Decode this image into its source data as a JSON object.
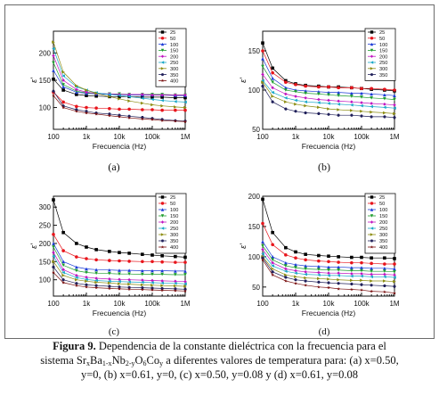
{
  "chart_data": [
    {
      "type": "scatter",
      "panel_label": "(a)",
      "xlabel": "Frecuencia (Hz)",
      "ylabel": "ε'",
      "xscale": "log",
      "xlim": [
        100,
        1000000
      ],
      "ylim": [
        60,
        240
      ],
      "x_ticks": [
        "100",
        "1k",
        "10k",
        "100k",
        "1M"
      ],
      "y_ticks": [
        100,
        150,
        200
      ],
      "legend_position": "top-right",
      "x": [
        100,
        200,
        500,
        1000,
        2000,
        5000,
        10000,
        20000,
        50000,
        100000,
        200000,
        500000,
        1000000
      ],
      "series": [
        {
          "name": "25",
          "color": "#000000",
          "marker": "square",
          "values": [
            152,
            132,
            124,
            122,
            121,
            120,
            120,
            120,
            119,
            119,
            119,
            118,
            118
          ]
        },
        {
          "name": "50",
          "color": "#e8141b",
          "marker": "circle",
          "values": [
            128,
            110,
            102,
            100,
            99,
            98,
            97,
            97,
            96,
            96,
            95,
            95,
            95
          ]
        },
        {
          "name": "100",
          "color": "#1b3bd6",
          "marker": "triangle",
          "values": [
            168,
            138,
            128,
            126,
            125,
            124,
            124,
            123,
            123,
            123,
            123,
            122,
            122
          ]
        },
        {
          "name": "150",
          "color": "#1e9e2e",
          "marker": "tri-down",
          "values": [
            182,
            142,
            130,
            127,
            126,
            125,
            125,
            124,
            124,
            124,
            124,
            123,
            123
          ]
        },
        {
          "name": "200",
          "color": "#c014c0",
          "marker": "diamond",
          "values": [
            195,
            150,
            133,
            128,
            126,
            125,
            124,
            124,
            124,
            123,
            123,
            123,
            123
          ]
        },
        {
          "name": "250",
          "color": "#1aa8c8",
          "marker": "tri-left",
          "values": [
            208,
            158,
            138,
            132,
            127,
            124,
            122,
            120,
            117,
            115,
            113,
            111,
            110
          ]
        },
        {
          "name": "300",
          "color": "#8c8c10",
          "marker": "tri-right",
          "values": [
            220,
            165,
            140,
            132,
            126,
            120,
            116,
            112,
            108,
            105,
            103,
            101,
            100
          ]
        },
        {
          "name": "350",
          "color": "#20205a",
          "marker": "hexagon",
          "values": [
            130,
            103,
            96,
            93,
            90,
            88,
            86,
            84,
            82,
            80,
            78,
            76,
            75
          ]
        },
        {
          "name": "400",
          "color": "#7a1010",
          "marker": "star",
          "values": [
            122,
            100,
            93,
            90,
            88,
            85,
            83,
            81,
            79,
            78,
            76,
            75,
            74
          ]
        }
      ]
    },
    {
      "type": "scatter",
      "panel_label": "(b)",
      "xlabel": "Frecuencia (Hz)",
      "ylabel": "ε'",
      "xscale": "log",
      "xlim": [
        100,
        1000000
      ],
      "ylim": [
        50,
        175
      ],
      "x_ticks": [
        "100",
        "1k",
        "10k",
        "100k",
        "1M"
      ],
      "y_ticks": [
        50,
        100,
        150
      ],
      "legend_position": "top-right",
      "x": [
        100,
        200,
        500,
        1000,
        2000,
        5000,
        10000,
        20000,
        50000,
        100000,
        200000,
        500000,
        1000000
      ],
      "series": [
        {
          "name": "25",
          "color": "#000000",
          "marker": "square",
          "values": [
            160,
            128,
            112,
            108,
            106,
            105,
            104,
            104,
            103,
            102,
            101,
            100,
            99
          ]
        },
        {
          "name": "50",
          "color": "#e8141b",
          "marker": "circle",
          "values": [
            150,
            122,
            110,
            107,
            105,
            104,
            104,
            103,
            103,
            102,
            102,
            101,
            100
          ]
        },
        {
          "name": "100",
          "color": "#1b3bd6",
          "marker": "triangle",
          "values": [
            140,
            115,
            103,
            100,
            99,
            98,
            97,
            97,
            96,
            96,
            95,
            94,
            93
          ]
        },
        {
          "name": "150",
          "color": "#1e9e2e",
          "marker": "tri-down",
          "values": [
            130,
            110,
            100,
            98,
            96,
            95,
            94,
            93,
            92,
            91,
            90,
            89,
            88
          ]
        },
        {
          "name": "200",
          "color": "#c014c0",
          "marker": "diamond",
          "values": [
            120,
            103,
            95,
            92,
            90,
            88,
            87,
            86,
            85,
            84,
            83,
            82,
            81
          ]
        },
        {
          "name": "250",
          "color": "#1aa8c8",
          "marker": "tri-left",
          "values": [
            112,
            97,
            90,
            87,
            85,
            84,
            83,
            82,
            81,
            80,
            79,
            78,
            77
          ]
        },
        {
          "name": "300",
          "color": "#8c8c10",
          "marker": "tri-right",
          "values": [
            110,
            92,
            85,
            82,
            80,
            78,
            76,
            75,
            74,
            73,
            72,
            71,
            70
          ]
        },
        {
          "name": "350",
          "color": "#20205a",
          "marker": "hexagon",
          "values": [
            105,
            85,
            76,
            73,
            71,
            70,
            69,
            68,
            68,
            67,
            66,
            66,
            65
          ]
        }
      ]
    },
    {
      "type": "scatter",
      "panel_label": "(c)",
      "xlabel": "Frecuencia (Hz)",
      "ylabel": "ε'",
      "xscale": "log",
      "xlim": [
        100,
        1000000
      ],
      "ylim": [
        55,
        330
      ],
      "x_ticks": [
        "100",
        "1k",
        "10k",
        "100k",
        "1M"
      ],
      "y_ticks": [
        100,
        150,
        200,
        250,
        300
      ],
      "legend_position": "top-right",
      "x": [
        100,
        200,
        500,
        1000,
        2000,
        5000,
        10000,
        20000,
        50000,
        100000,
        200000,
        500000,
        1000000
      ],
      "series": [
        {
          "name": "25",
          "color": "#000000",
          "marker": "square",
          "values": [
            320,
            230,
            200,
            190,
            183,
            178,
            175,
            173,
            170,
            168,
            166,
            164,
            162
          ]
        },
        {
          "name": "50",
          "color": "#e8141b",
          "marker": "circle",
          "values": [
            225,
            180,
            163,
            158,
            155,
            153,
            152,
            151,
            150,
            150,
            149,
            148,
            148
          ]
        },
        {
          "name": "100",
          "color": "#1b3bd6",
          "marker": "triangle",
          "values": [
            200,
            150,
            135,
            130,
            128,
            127,
            126,
            126,
            125,
            125,
            125,
            124,
            124
          ]
        },
        {
          "name": "150",
          "color": "#1e9e2e",
          "marker": "tri-down",
          "values": [
            190,
            140,
            125,
            120,
            118,
            117,
            116,
            116,
            115,
            115,
            115,
            114,
            114
          ]
        },
        {
          "name": "200",
          "color": "#c014c0",
          "marker": "diamond",
          "values": [
            175,
            128,
            112,
            107,
            104,
            102,
            101,
            100,
            99,
            98,
            97,
            96,
            95
          ]
        },
        {
          "name": "250",
          "color": "#1aa8c8",
          "marker": "tri-left",
          "values": [
            165,
            120,
            106,
            101,
            98,
            96,
            95,
            94,
            93,
            92,
            91,
            90,
            89
          ]
        },
        {
          "name": "300",
          "color": "#8c8c10",
          "marker": "tri-right",
          "values": [
            150,
            112,
            100,
            96,
            93,
            91,
            89,
            88,
            86,
            85,
            84,
            83,
            82
          ]
        },
        {
          "name": "350",
          "color": "#20205a",
          "marker": "hexagon",
          "values": [
            135,
            100,
            90,
            86,
            84,
            82,
            80,
            79,
            78,
            77,
            76,
            75,
            74
          ]
        },
        {
          "name": "400",
          "color": "#7a1010",
          "marker": "star",
          "values": [
            120,
            92,
            84,
            80,
            78,
            76,
            75,
            74,
            73,
            72,
            71,
            70,
            69
          ]
        }
      ]
    },
    {
      "type": "scatter",
      "panel_label": "(d)",
      "xlabel": "Frecuencia (Hz)",
      "ylabel": "ε'",
      "xscale": "log",
      "xlim": [
        100,
        1000000
      ],
      "ylim": [
        35,
        200
      ],
      "x_ticks": [
        "100",
        "1k",
        "10k",
        "100k",
        "1M"
      ],
      "y_ticks": [
        50,
        100,
        150,
        200
      ],
      "legend_position": "top-right",
      "x": [
        100,
        200,
        500,
        1000,
        2000,
        5000,
        10000,
        20000,
        50000,
        100000,
        200000,
        500000,
        1000000
      ],
      "series": [
        {
          "name": "25",
          "color": "#000000",
          "marker": "square",
          "values": [
            195,
            140,
            115,
            108,
            104,
            102,
            101,
            100,
            99,
            99,
            98,
            98,
            97
          ]
        },
        {
          "name": "50",
          "color": "#e8141b",
          "marker": "circle",
          "values": [
            155,
            120,
            103,
            98,
            95,
            93,
            92,
            91,
            90,
            90,
            89,
            88,
            88
          ]
        },
        {
          "name": "100",
          "color": "#1b3bd6",
          "marker": "triangle",
          "values": [
            125,
            100,
            90,
            87,
            85,
            84,
            83,
            83,
            82,
            82,
            81,
            81,
            80
          ]
        },
        {
          "name": "150",
          "color": "#1e9e2e",
          "marker": "tri-down",
          "values": [
            118,
            95,
            85,
            82,
            80,
            79,
            78,
            78,
            77,
            77,
            76,
            76,
            75
          ]
        },
        {
          "name": "200",
          "color": "#c014c0",
          "marker": "diamond",
          "values": [
            112,
            90,
            80,
            77,
            75,
            74,
            73,
            73,
            72,
            72,
            71,
            71,
            70
          ]
        },
        {
          "name": "250",
          "color": "#1aa8c8",
          "marker": "tri-left",
          "values": [
            105,
            85,
            76,
            73,
            71,
            70,
            69,
            69,
            68,
            68,
            67,
            67,
            66
          ]
        },
        {
          "name": "300",
          "color": "#8c8c10",
          "marker": "tri-right",
          "values": [
            100,
            80,
            70,
            67,
            65,
            64,
            63,
            62,
            61,
            61,
            60,
            60,
            59
          ]
        },
        {
          "name": "350",
          "color": "#20205a",
          "marker": "hexagon",
          "values": [
            98,
            75,
            66,
            62,
            60,
            58,
            57,
            56,
            55,
            54,
            53,
            52,
            51
          ]
        },
        {
          "name": "400",
          "color": "#7a1010",
          "marker": "star",
          "values": [
            95,
            70,
            60,
            56,
            53,
            50,
            49,
            47,
            46,
            45,
            43,
            42,
            40
          ]
        }
      ]
    }
  ],
  "caption": {
    "figure_label": "Figura 9.",
    "line1": "Dependencia de la constante dieléctrica con la frecuencia para el",
    "sistema": "sistema Sr",
    "sub_x": "x",
    "ba": "Ba",
    "sub_1x": "1-x",
    "nb": "Nb",
    "sub_2y": "2-y",
    "o": "O",
    "sub_6": "6",
    "co": "Co",
    "sub_y": "y",
    "line2_rest": " a diferentes valores de temperatura para: (a) x=0.50,",
    "line3": "y=0, (b) x=0.61, y=0, (c) x=0.50, y=0.08 y (d) x=0.61, y=0.08"
  }
}
